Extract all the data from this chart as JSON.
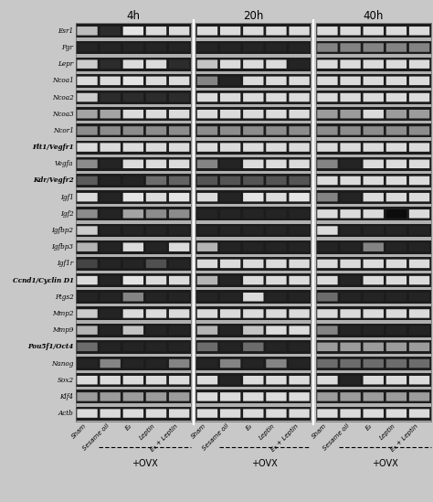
{
  "time_points": [
    "4h",
    "20h",
    "40h"
  ],
  "gene_labels": [
    "Esr1",
    "Pgr",
    "Lepr",
    "Ncoa1",
    "Ncoa2",
    "Ncoa3",
    "Ncor1",
    "Flt1/Vegfr1",
    "Vegfa",
    "Kdr/Vegfr2",
    "Igf1",
    "Igf2",
    "Igfbp2",
    "Igfbp3",
    "Igf1r",
    "Ccnd1/Cyclin D1",
    "Ptgs2",
    "Mmp2",
    "Mmp9",
    "Pou5f1/Oct4",
    "Nanog",
    "Sox2",
    "Klf4",
    "Actb"
  ],
  "x_labels": [
    "Sham",
    "Sesame oil",
    "E₂",
    "Leptin",
    "E₂ + Leptin"
  ],
  "ovx_label": "+OVX",
  "n_lanes": 5,
  "n_genes": 24,
  "n_panels": 3,
  "row_bg_color": "#888888",
  "inter_row_color": "#c8c8c8",
  "gel_dark": "#1a1a1a",
  "bands": {
    "4h": [
      [
        0.75,
        0.15,
        0.92,
        0.88,
        0.88
      ],
      [
        0.12,
        0.12,
        0.12,
        0.12,
        0.12
      ],
      [
        0.82,
        0.15,
        0.88,
        0.88,
        0.15
      ],
      [
        0.88,
        0.88,
        0.92,
        0.88,
        0.88
      ],
      [
        0.82,
        0.15,
        0.15,
        0.15,
        0.15
      ],
      [
        0.65,
        0.65,
        0.88,
        0.88,
        0.88
      ],
      [
        0.55,
        0.55,
        0.55,
        0.55,
        0.55
      ],
      [
        0.88,
        0.88,
        0.88,
        0.88,
        0.88
      ],
      [
        0.55,
        0.12,
        0.88,
        0.88,
        0.88
      ],
      [
        0.35,
        0.12,
        0.12,
        0.42,
        0.38
      ],
      [
        0.88,
        0.12,
        0.92,
        0.88,
        0.92
      ],
      [
        0.55,
        0.12,
        0.65,
        0.55,
        0.55
      ],
      [
        0.82,
        0.12,
        0.12,
        0.12,
        0.12
      ],
      [
        0.72,
        0.12,
        0.88,
        0.12,
        0.88
      ],
      [
        0.25,
        0.12,
        0.12,
        0.3,
        0.12
      ],
      [
        0.88,
        0.12,
        0.92,
        0.88,
        0.88
      ],
      [
        0.12,
        0.12,
        0.52,
        0.12,
        0.12
      ],
      [
        0.82,
        0.12,
        0.88,
        0.88,
        0.88
      ],
      [
        0.72,
        0.12,
        0.78,
        0.12,
        0.12
      ],
      [
        0.42,
        0.12,
        0.12,
        0.12,
        0.12
      ],
      [
        0.12,
        0.52,
        0.12,
        0.12,
        0.52
      ],
      [
        0.88,
        0.88,
        0.88,
        0.88,
        0.88
      ],
      [
        0.62,
        0.62,
        0.62,
        0.62,
        0.62
      ],
      [
        0.88,
        0.88,
        0.88,
        0.88,
        0.88
      ]
    ],
    "20h": [
      [
        0.88,
        0.88,
        0.88,
        0.88,
        0.88
      ],
      [
        0.12,
        0.12,
        0.12,
        0.12,
        0.12
      ],
      [
        0.78,
        0.88,
        0.88,
        0.88,
        0.12
      ],
      [
        0.52,
        0.12,
        0.88,
        0.88,
        0.88
      ],
      [
        0.88,
        0.88,
        0.88,
        0.88,
        0.88
      ],
      [
        0.88,
        0.88,
        0.88,
        0.88,
        0.88
      ],
      [
        0.55,
        0.55,
        0.55,
        0.55,
        0.55
      ],
      [
        0.88,
        0.88,
        0.88,
        0.88,
        0.88
      ],
      [
        0.52,
        0.12,
        0.88,
        0.88,
        0.88
      ],
      [
        0.32,
        0.32,
        0.32,
        0.32,
        0.32
      ],
      [
        0.88,
        0.12,
        0.92,
        0.88,
        0.92
      ],
      [
        0.12,
        0.12,
        0.12,
        0.12,
        0.12
      ],
      [
        0.12,
        0.12,
        0.12,
        0.12,
        0.12
      ],
      [
        0.72,
        0.12,
        0.12,
        0.12,
        0.12
      ],
      [
        0.88,
        0.88,
        0.88,
        0.88,
        0.88
      ],
      [
        0.72,
        0.12,
        0.88,
        0.88,
        0.88
      ],
      [
        0.12,
        0.12,
        0.88,
        0.12,
        0.12
      ],
      [
        0.88,
        0.88,
        0.88,
        0.88,
        0.88
      ],
      [
        0.72,
        0.12,
        0.78,
        0.88,
        0.88
      ],
      [
        0.42,
        0.12,
        0.42,
        0.12,
        0.12
      ],
      [
        0.12,
        0.52,
        0.12,
        0.52,
        0.12
      ],
      [
        0.88,
        0.12,
        0.88,
        0.88,
        0.88
      ],
      [
        0.88,
        0.88,
        0.88,
        0.88,
        0.88
      ],
      [
        0.88,
        0.88,
        0.88,
        0.88,
        0.88
      ]
    ],
    "40h": [
      [
        0.88,
        0.88,
        0.88,
        0.88,
        0.88
      ],
      [
        0.52,
        0.52,
        0.52,
        0.52,
        0.52
      ],
      [
        0.88,
        0.88,
        0.88,
        0.88,
        0.88
      ],
      [
        0.88,
        0.88,
        0.88,
        0.88,
        0.88
      ],
      [
        0.88,
        0.88,
        0.88,
        0.88,
        0.88
      ],
      [
        0.62,
        0.62,
        0.88,
        0.62,
        0.62
      ],
      [
        0.55,
        0.55,
        0.55,
        0.55,
        0.55
      ],
      [
        0.88,
        0.88,
        0.88,
        0.88,
        0.88
      ],
      [
        0.52,
        0.12,
        0.88,
        0.88,
        0.88
      ],
      [
        0.88,
        0.88,
        0.88,
        0.88,
        0.88
      ],
      [
        0.52,
        0.12,
        0.88,
        0.88,
        0.88
      ],
      [
        0.88,
        0.88,
        0.88,
        0.02,
        0.88
      ],
      [
        0.88,
        0.12,
        0.12,
        0.12,
        0.12
      ],
      [
        0.12,
        0.12,
        0.52,
        0.12,
        0.12
      ],
      [
        0.88,
        0.88,
        0.88,
        0.88,
        0.88
      ],
      [
        0.88,
        0.12,
        0.88,
        0.88,
        0.88
      ],
      [
        0.42,
        0.12,
        0.12,
        0.12,
        0.12
      ],
      [
        0.88,
        0.88,
        0.88,
        0.88,
        0.88
      ],
      [
        0.52,
        0.12,
        0.12,
        0.12,
        0.12
      ],
      [
        0.62,
        0.62,
        0.62,
        0.62,
        0.62
      ],
      [
        0.42,
        0.42,
        0.42,
        0.42,
        0.42
      ],
      [
        0.88,
        0.12,
        0.88,
        0.88,
        0.88
      ],
      [
        0.62,
        0.62,
        0.62,
        0.62,
        0.62
      ],
      [
        0.88,
        0.88,
        0.88,
        0.88,
        0.88
      ]
    ]
  }
}
